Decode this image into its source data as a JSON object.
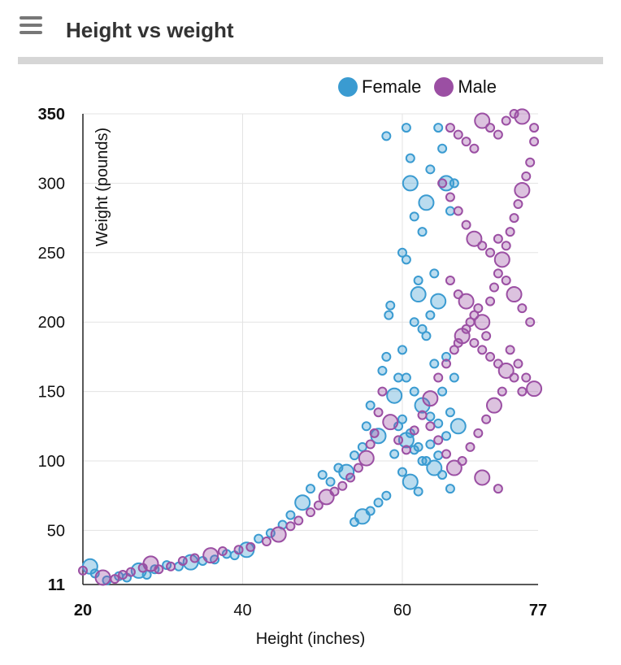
{
  "header": {
    "title": "Height vs weight"
  },
  "colors": {
    "female": "#3a9bd1",
    "male": "#9b4fa3"
  },
  "chart_data": {
    "type": "scatter",
    "title": "",
    "xlabel": "Height (inches)",
    "ylabel": "Weight (pounds)",
    "xlim": [
      20,
      77
    ],
    "ylim": [
      11,
      350
    ],
    "x_ticks": [
      20,
      40,
      60,
      77
    ],
    "y_ticks": [
      11,
      50,
      100,
      150,
      200,
      250,
      300,
      350
    ],
    "grid": true,
    "legend": "top-right",
    "series": [
      {
        "name": "Female",
        "color": "#3a9bd1",
        "points": [
          [
            20.9,
            24
          ],
          [
            21.5,
            19
          ],
          [
            23,
            14
          ],
          [
            24.5,
            17
          ],
          [
            25.5,
            16
          ],
          [
            27,
            21
          ],
          [
            28,
            18
          ],
          [
            29,
            22
          ],
          [
            30.5,
            25
          ],
          [
            32,
            24
          ],
          [
            33.5,
            27
          ],
          [
            35,
            28
          ],
          [
            36.5,
            29
          ],
          [
            38,
            33
          ],
          [
            39,
            32
          ],
          [
            40.5,
            36
          ],
          [
            42,
            44
          ],
          [
            43.5,
            48
          ],
          [
            45,
            54
          ],
          [
            46,
            61
          ],
          [
            47.5,
            70
          ],
          [
            48.5,
            80
          ],
          [
            50,
            90
          ],
          [
            51,
            85
          ],
          [
            52,
            95
          ],
          [
            53,
            92
          ],
          [
            54,
            104
          ],
          [
            55,
            110
          ],
          [
            55.5,
            125
          ],
          [
            56,
            140
          ],
          [
            57,
            118
          ],
          [
            57.5,
            165
          ],
          [
            58,
            175
          ],
          [
            58.3,
            205
          ],
          [
            58.5,
            212
          ],
          [
            59,
            147
          ],
          [
            59.5,
            160
          ],
          [
            60,
            180
          ],
          [
            60,
            250
          ],
          [
            60.5,
            245
          ],
          [
            61,
            300
          ],
          [
            61,
            318
          ],
          [
            61.5,
            276
          ],
          [
            62,
            230
          ],
          [
            62.5,
            265
          ],
          [
            63,
            286
          ],
          [
            63.5,
            310
          ],
          [
            64,
            235
          ],
          [
            64.5,
            340
          ],
          [
            65,
            325
          ],
          [
            65.5,
            300
          ],
          [
            66,
            280
          ],
          [
            66.5,
            300
          ],
          [
            58,
            334
          ],
          [
            60.5,
            340
          ],
          [
            62,
            220
          ],
          [
            63,
            190
          ],
          [
            64,
            170
          ],
          [
            65,
            150
          ],
          [
            66,
            135
          ],
          [
            67,
            125
          ],
          [
            60,
            130
          ],
          [
            61,
            120
          ],
          [
            62,
            110
          ],
          [
            63,
            100
          ],
          [
            64,
            95
          ],
          [
            65,
            90
          ],
          [
            66,
            80
          ],
          [
            59,
            105
          ],
          [
            60,
            92
          ],
          [
            61,
            85
          ],
          [
            62,
            78
          ],
          [
            58,
            75
          ],
          [
            57,
            70
          ],
          [
            56,
            64
          ],
          [
            55,
            60
          ],
          [
            54,
            56
          ],
          [
            61.5,
            200
          ],
          [
            62.5,
            195
          ],
          [
            63.5,
            205
          ],
          [
            64.5,
            215
          ],
          [
            65.5,
            175
          ],
          [
            66.5,
            160
          ],
          [
            60.5,
            160
          ],
          [
            61.5,
            150
          ],
          [
            62.5,
            140
          ],
          [
            63.5,
            132
          ],
          [
            64.5,
            127
          ],
          [
            65.5,
            118
          ],
          [
            59.5,
            125
          ],
          [
            60.5,
            115
          ],
          [
            61.5,
            108
          ],
          [
            62.5,
            100
          ],
          [
            63.5,
            112
          ],
          [
            64.5,
            104
          ]
        ]
      },
      {
        "name": "Male",
        "color": "#9b4fa3",
        "points": [
          [
            20,
            21
          ],
          [
            22.5,
            16
          ],
          [
            24,
            15
          ],
          [
            25,
            18
          ],
          [
            26,
            20
          ],
          [
            27.5,
            23
          ],
          [
            28.5,
            26
          ],
          [
            29.5,
            22
          ],
          [
            31,
            24
          ],
          [
            32.5,
            28
          ],
          [
            34,
            30
          ],
          [
            36,
            32
          ],
          [
            37.5,
            35
          ],
          [
            39.5,
            36
          ],
          [
            41,
            38
          ],
          [
            43,
            42
          ],
          [
            44.5,
            47
          ],
          [
            46,
            53
          ],
          [
            47,
            57
          ],
          [
            48.5,
            63
          ],
          [
            49.5,
            68
          ],
          [
            50.5,
            74
          ],
          [
            51.5,
            78
          ],
          [
            52.5,
            82
          ],
          [
            53.5,
            88
          ],
          [
            54.5,
            95
          ],
          [
            55.5,
            102
          ],
          [
            56,
            112
          ],
          [
            56.5,
            120
          ],
          [
            57,
            135
          ],
          [
            57.5,
            150
          ],
          [
            58.5,
            128
          ],
          [
            59.5,
            115
          ],
          [
            60.5,
            108
          ],
          [
            61.5,
            122
          ],
          [
            62.5,
            133
          ],
          [
            63.5,
            145
          ],
          [
            64.5,
            160
          ],
          [
            65.5,
            170
          ],
          [
            66.5,
            180
          ],
          [
            67,
            185
          ],
          [
            67.5,
            190
          ],
          [
            68,
            195
          ],
          [
            68.5,
            200
          ],
          [
            69,
            205
          ],
          [
            69.5,
            210
          ],
          [
            70,
            200
          ],
          [
            70.5,
            190
          ],
          [
            71,
            215
          ],
          [
            71.5,
            225
          ],
          [
            72,
            235
          ],
          [
            72.5,
            245
          ],
          [
            73,
            255
          ],
          [
            73.5,
            265
          ],
          [
            74,
            275
          ],
          [
            74.5,
            285
          ],
          [
            75,
            295
          ],
          [
            75.5,
            305
          ],
          [
            76,
            315
          ],
          [
            76.5,
            330
          ],
          [
            76.5,
            340
          ],
          [
            76.5,
            152
          ],
          [
            75.5,
            160
          ],
          [
            74.5,
            170
          ],
          [
            73.5,
            180
          ],
          [
            72.5,
            150
          ],
          [
            71.5,
            140
          ],
          [
            70.5,
            130
          ],
          [
            69.5,
            120
          ],
          [
            68.5,
            110
          ],
          [
            67.5,
            100
          ],
          [
            66.5,
            95
          ],
          [
            65.5,
            105
          ],
          [
            64.5,
            115
          ],
          [
            63.5,
            125
          ],
          [
            72,
            80
          ],
          [
            70,
            88
          ],
          [
            66,
            340
          ],
          [
            67,
            335
          ],
          [
            68,
            330
          ],
          [
            69,
            325
          ],
          [
            70,
            345
          ],
          [
            71,
            340
          ],
          [
            72,
            335
          ],
          [
            73,
            345
          ],
          [
            74,
            350
          ],
          [
            75,
            348
          ],
          [
            65,
            300
          ],
          [
            66,
            290
          ],
          [
            67,
            280
          ],
          [
            68,
            270
          ],
          [
            69,
            260
          ],
          [
            70,
            255
          ],
          [
            71,
            250
          ],
          [
            72,
            260
          ],
          [
            73,
            230
          ],
          [
            74,
            220
          ],
          [
            75,
            210
          ],
          [
            76,
            200
          ],
          [
            66,
            230
          ],
          [
            67,
            220
          ],
          [
            68,
            215
          ],
          [
            69,
            185
          ],
          [
            70,
            180
          ],
          [
            71,
            175
          ],
          [
            72,
            170
          ],
          [
            73,
            165
          ],
          [
            74,
            160
          ],
          [
            75,
            150
          ]
        ]
      }
    ]
  }
}
